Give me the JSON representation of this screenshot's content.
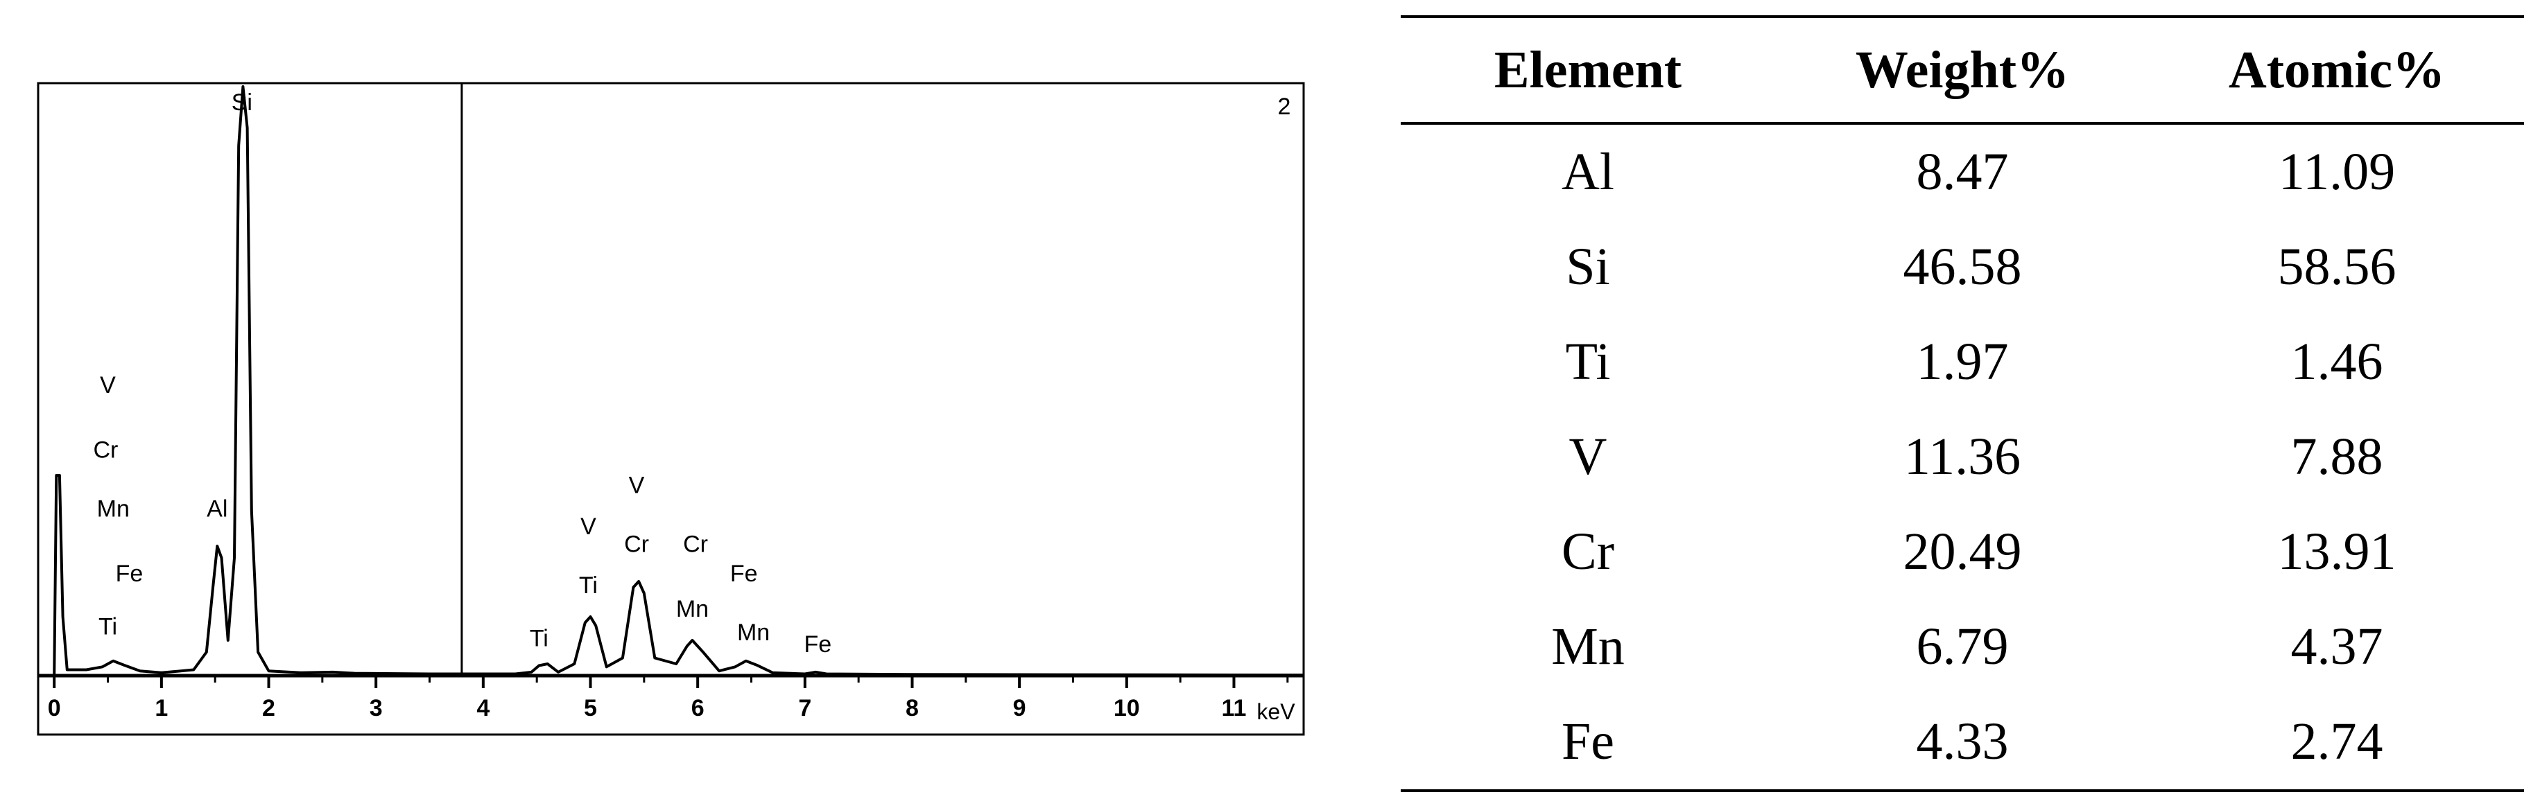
{
  "chart_data": {
    "type": "line",
    "panel_number": "2",
    "xlabel": "keV",
    "xlim": [
      -0.15,
      11.65
    ],
    "x_ticks": [
      0,
      1,
      2,
      3,
      4,
      5,
      6,
      7,
      8,
      9,
      10,
      11
    ],
    "marker_x": 3.8,
    "series": [
      {
        "points": [
          [
            -0.15,
            0
          ],
          [
            0.0,
            0
          ],
          [
            0.02,
            0.34
          ],
          [
            0.05,
            0.34
          ],
          [
            0.08,
            0.1
          ],
          [
            0.12,
            0.01
          ],
          [
            0.3,
            0.01
          ],
          [
            0.45,
            0.015
          ],
          [
            0.55,
            0.025
          ],
          [
            0.65,
            0.018
          ],
          [
            0.8,
            0.008
          ],
          [
            1.0,
            0.005
          ],
          [
            1.3,
            0.01
          ],
          [
            1.42,
            0.04
          ],
          [
            1.48,
            0.15
          ],
          [
            1.52,
            0.22
          ],
          [
            1.56,
            0.2
          ],
          [
            1.62,
            0.06
          ],
          [
            1.68,
            0.2
          ],
          [
            1.72,
            0.9
          ],
          [
            1.76,
            1.0
          ],
          [
            1.8,
            0.93
          ],
          [
            1.84,
            0.28
          ],
          [
            1.9,
            0.04
          ],
          [
            2.0,
            0.008
          ],
          [
            2.3,
            0.005
          ],
          [
            2.6,
            0.006
          ],
          [
            2.8,
            0.004
          ],
          [
            3.5,
            0.003
          ],
          [
            4.3,
            0.003
          ],
          [
            4.45,
            0.006
          ],
          [
            4.52,
            0.017
          ],
          [
            4.6,
            0.02
          ],
          [
            4.7,
            0.006
          ],
          [
            4.85,
            0.02
          ],
          [
            4.95,
            0.09
          ],
          [
            5.0,
            0.1
          ],
          [
            5.05,
            0.085
          ],
          [
            5.15,
            0.015
          ],
          [
            5.3,
            0.03
          ],
          [
            5.4,
            0.15
          ],
          [
            5.45,
            0.16
          ],
          [
            5.5,
            0.14
          ],
          [
            5.6,
            0.03
          ],
          [
            5.8,
            0.02
          ],
          [
            5.9,
            0.05
          ],
          [
            5.95,
            0.06
          ],
          [
            6.05,
            0.04
          ],
          [
            6.2,
            0.008
          ],
          [
            6.35,
            0.015
          ],
          [
            6.45,
            0.025
          ],
          [
            6.55,
            0.018
          ],
          [
            6.7,
            0.005
          ],
          [
            7.0,
            0.003
          ],
          [
            7.1,
            0.006
          ],
          [
            7.2,
            0.003
          ],
          [
            8.0,
            0.002
          ],
          [
            11.65,
            0.001
          ]
        ]
      }
    ],
    "peak_labels": [
      {
        "text": "V",
        "x": 0.5,
        "y": 0.48
      },
      {
        "text": "Cr",
        "x": 0.48,
        "y": 0.37
      },
      {
        "text": "Mn",
        "x": 0.55,
        "y": 0.27
      },
      {
        "text": "Fe",
        "x": 0.7,
        "y": 0.16
      },
      {
        "text": "Ti",
        "x": 0.5,
        "y": 0.07
      },
      {
        "text": "Al",
        "x": 1.52,
        "y": 0.27
      },
      {
        "text": "Si",
        "x": 1.75,
        "y": 0.96
      },
      {
        "text": "Ti",
        "x": 4.52,
        "y": 0.05
      },
      {
        "text": "V",
        "x": 4.98,
        "y": 0.24
      },
      {
        "text": "Ti",
        "x": 4.98,
        "y": 0.14
      },
      {
        "text": "V",
        "x": 5.43,
        "y": 0.31
      },
      {
        "text": "Cr",
        "x": 5.43,
        "y": 0.21
      },
      {
        "text": "Cr",
        "x": 5.98,
        "y": 0.21
      },
      {
        "text": "Mn",
        "x": 5.95,
        "y": 0.1
      },
      {
        "text": "Fe",
        "x": 6.43,
        "y": 0.16
      },
      {
        "text": "Mn",
        "x": 6.52,
        "y": 0.06
      },
      {
        "text": "Fe",
        "x": 7.12,
        "y": 0.04
      }
    ]
  },
  "table": {
    "headers": [
      "Element",
      "Weight%",
      "Atomic%"
    ],
    "rows": [
      [
        "Al",
        "8.47",
        "11.09"
      ],
      [
        "Si",
        "46.58",
        "58.56"
      ],
      [
        "Ti",
        "1.97",
        "1.46"
      ],
      [
        "V",
        "11.36",
        "7.88"
      ],
      [
        "Cr",
        "20.49",
        "13.91"
      ],
      [
        "Mn",
        "6.79",
        "4.37"
      ],
      [
        "Fe",
        "4.33",
        "2.74"
      ]
    ]
  }
}
